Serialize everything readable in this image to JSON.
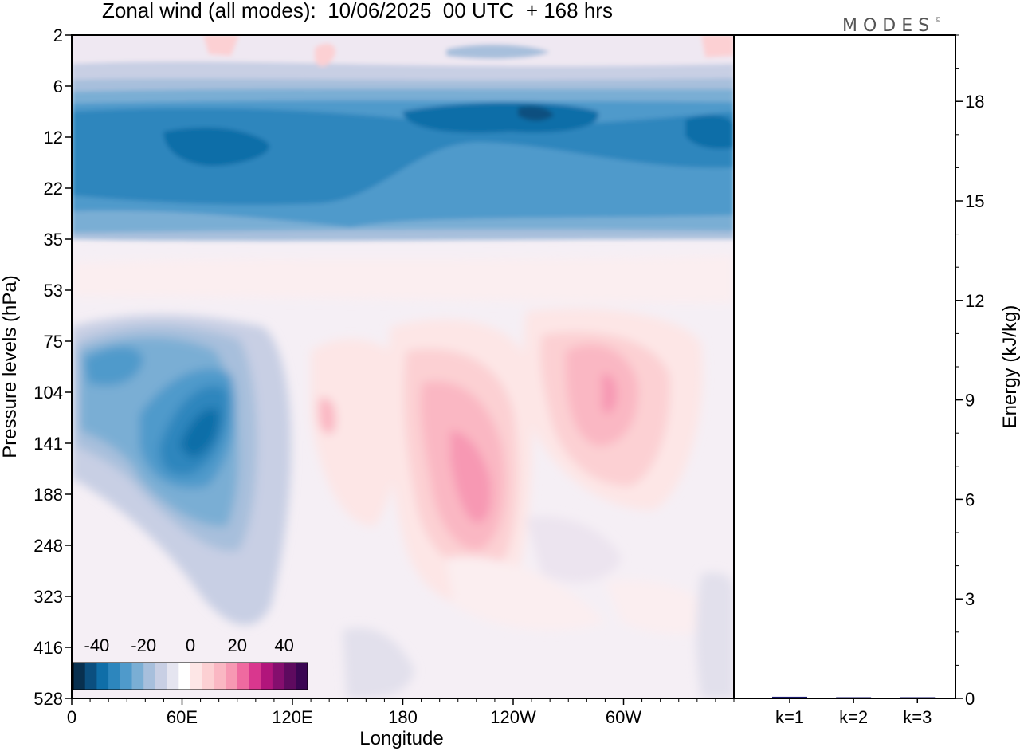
{
  "title": "Zonal wind (all modes):  10/06/2025  00 UTC  + 168 hrs",
  "logo": "MODES",
  "logo_mark": "©",
  "chart_data": {
    "type": "heatmap",
    "title": "Zonal wind (all modes):  10/06/2025  00 UTC  + 168 hrs",
    "xlabel": "Longitude",
    "ylabel": "Pressure levels (hPa)",
    "x_ticks": [
      "0",
      "60E",
      "120E",
      "180",
      "120W",
      "60W"
    ],
    "x_tick_lon": [
      0,
      60,
      120,
      180,
      240,
      300
    ],
    "x_range": [
      0,
      360
    ],
    "y_ticks": [
      "2",
      "6",
      "12",
      "22",
      "35",
      "53",
      "75",
      "104",
      "141",
      "188",
      "248",
      "323",
      "416",
      "528"
    ],
    "colorbar": {
      "labels": [
        "-40",
        "-20",
        "0",
        "20",
        "40"
      ],
      "values": [
        -40,
        -20,
        0,
        20,
        40
      ],
      "colors": [
        "#08304f",
        "#0b4f7f",
        "#0f6ea8",
        "#2d86bd",
        "#4f9acb",
        "#7aaed4",
        "#a7bfdc",
        "#c8cfe4",
        "#e5e5f0",
        "#ffffff",
        "#fde6e6",
        "#fcd0d3",
        "#fab7c3",
        "#f798b3",
        "#ef6aa0",
        "#d9378e",
        "#b1157b",
        "#850e6e",
        "#5e0a5f",
        "#3a0552"
      ]
    },
    "panel_energy": {
      "type": "bar",
      "ylabel": "Energy (kJ/kg)",
      "y_ticks": [
        "0",
        "3",
        "6",
        "9",
        "12",
        "15",
        "18"
      ],
      "ylim": [
        0,
        20
      ],
      "categories": [
        "k=1",
        "k=2",
        "k=3"
      ],
      "values": [
        0.05,
        0.03,
        0.02
      ]
    },
    "grid": false
  }
}
